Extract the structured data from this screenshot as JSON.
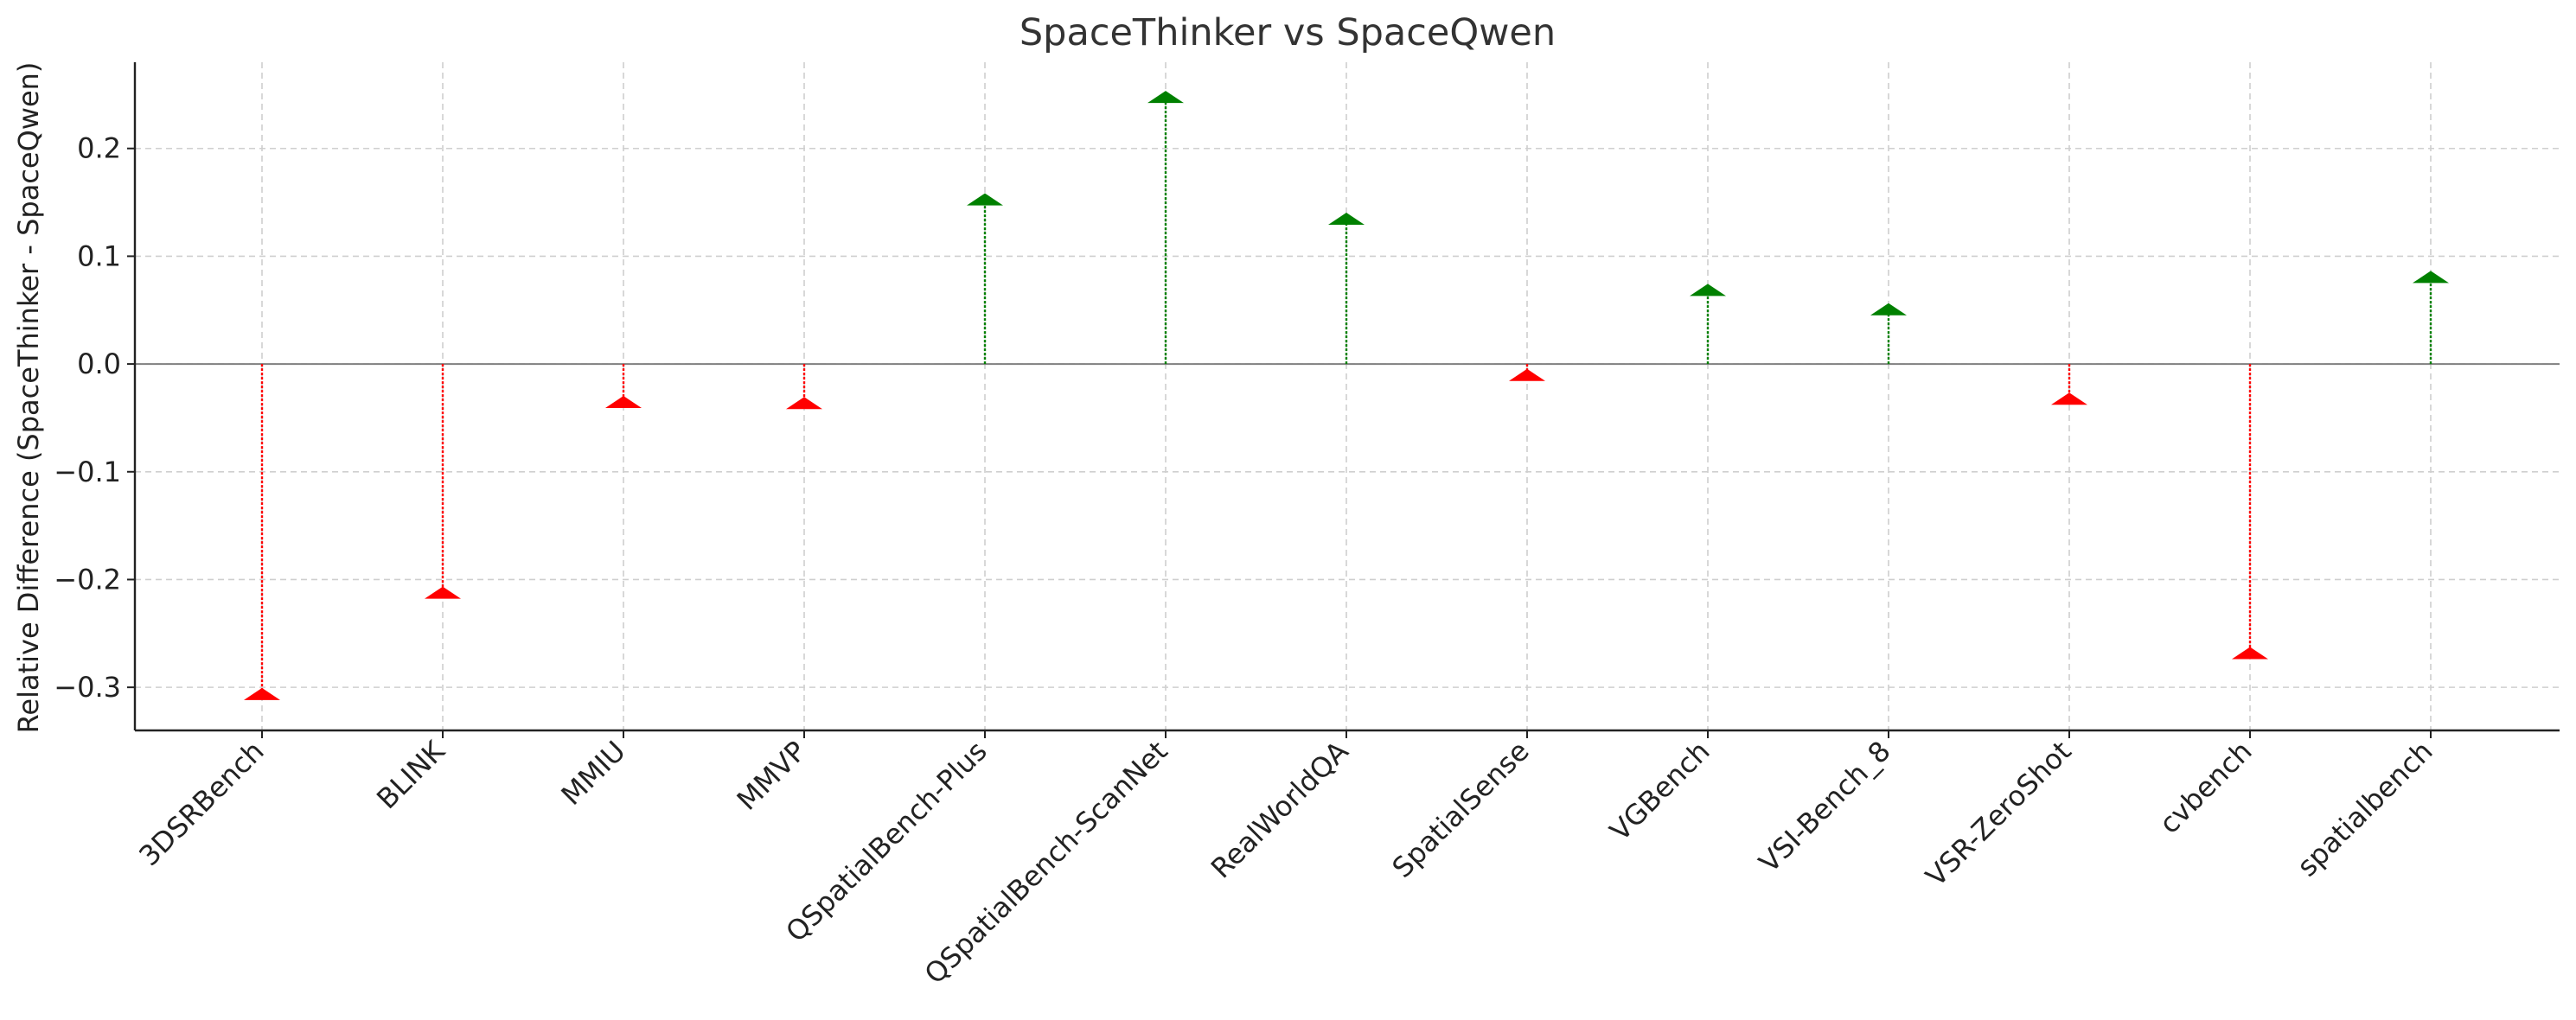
{
  "chart_data": {
    "type": "stem",
    "title": "SpaceThinker vs SpaceQwen",
    "xlabel": "",
    "ylabel": "Relative Difference (SpaceThinker - SpaceQwen)",
    "categories": [
      "3DSRBench",
      "BLINK",
      "MMIU",
      "MMVP",
      "QSpatialBench-Plus",
      "QSpatialBench-ScanNet",
      "RealWorldQA",
      "SpatialSense",
      "VGBench",
      "VSI-Bench_8",
      "VSR-ZeroShot",
      "cvbench",
      "spatialbench"
    ],
    "values": [
      -0.307,
      -0.213,
      -0.036,
      -0.037,
      0.152,
      0.247,
      0.134,
      -0.011,
      0.068,
      0.05,
      -0.033,
      -0.269,
      0.08
    ],
    "ylim": [
      -0.34,
      0.28
    ],
    "yticks": [
      -0.3,
      -0.2,
      -0.1,
      0.0,
      0.1,
      0.2
    ],
    "ytick_labels": [
      "−0.3",
      "−0.2",
      "−0.1",
      "0.0",
      "0.1",
      "0.2"
    ],
    "positive_color": "#008000",
    "negative_color": "#ff0000",
    "grid": true,
    "zero_line": true
  }
}
